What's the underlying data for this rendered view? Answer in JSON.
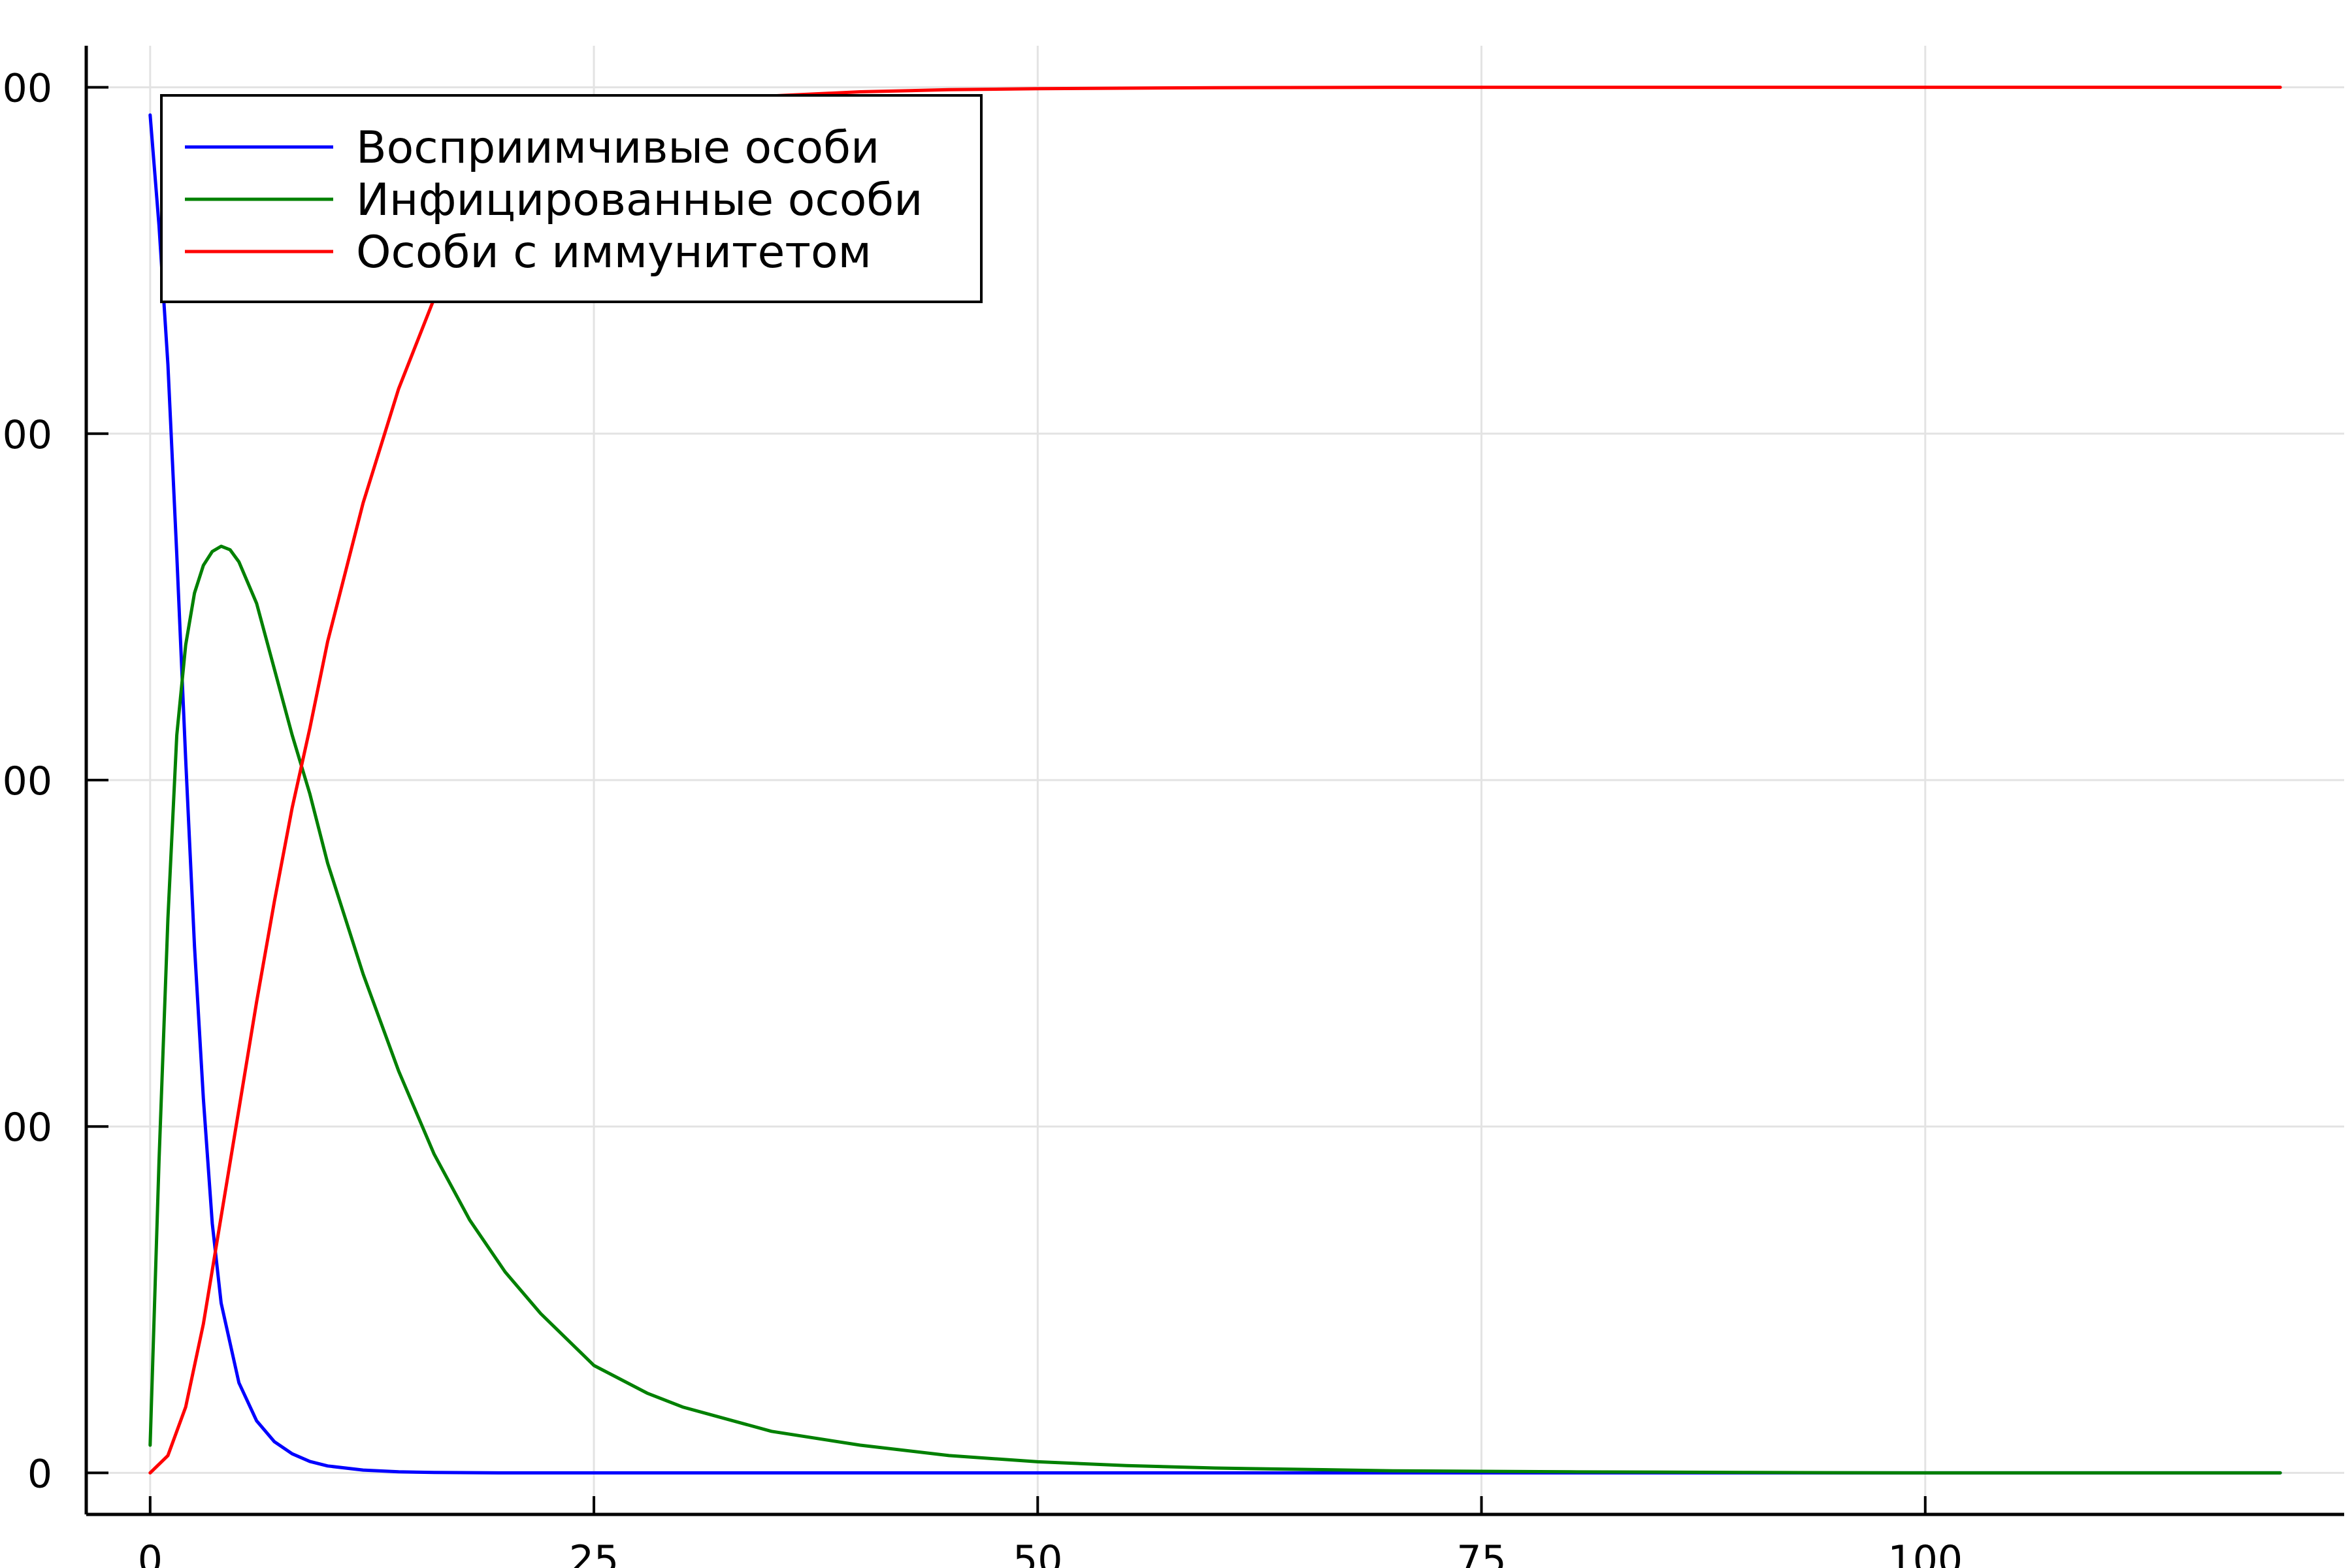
{
  "chart_data": {
    "type": "line",
    "title": "",
    "xlabel": "",
    "ylabel": "",
    "xlim": [
      -3.6,
      123.6
    ],
    "ylim": [
      -120,
      4120
    ],
    "xticks": [
      0,
      25,
      50,
      75,
      100
    ],
    "xtick_labels": [
      "0",
      "25",
      "50",
      "75",
      "100"
    ],
    "yticks": [
      0,
      1000,
      2000,
      3000,
      4000
    ],
    "ytick_labels": [
      "0",
      "00",
      "00",
      "00",
      "00"
    ],
    "grid": true,
    "legend_position": "top-left",
    "series": [
      {
        "name": "Восприимчивые особи",
        "color": "#0000ff",
        "points": [
          [
            0,
            3920
          ],
          [
            0.5,
            3600
          ],
          [
            1,
            3200
          ],
          [
            1.5,
            2650
          ],
          [
            2,
            2060
          ],
          [
            2.5,
            1520
          ],
          [
            3,
            1080
          ],
          [
            3.5,
            720
          ],
          [
            4,
            490
          ],
          [
            5,
            260
          ],
          [
            6,
            150
          ],
          [
            7,
            90
          ],
          [
            8,
            55
          ],
          [
            9,
            33
          ],
          [
            10,
            20
          ],
          [
            12,
            8
          ],
          [
            14,
            3
          ],
          [
            16,
            1
          ],
          [
            20,
            0
          ],
          [
            40,
            0
          ],
          [
            60,
            0
          ],
          [
            80,
            0
          ],
          [
            100,
            0
          ],
          [
            120,
            0
          ]
        ]
      },
      {
        "name": "Инфицированные особи",
        "color": "#008000",
        "points": [
          [
            0,
            80
          ],
          [
            0.5,
            900
          ],
          [
            1,
            1600
          ],
          [
            1.5,
            2130
          ],
          [
            2,
            2390
          ],
          [
            2.5,
            2540
          ],
          [
            3,
            2620
          ],
          [
            3.5,
            2660
          ],
          [
            4,
            2675
          ],
          [
            4.5,
            2665
          ],
          [
            5,
            2630
          ],
          [
            6,
            2510
          ],
          [
            7,
            2320
          ],
          [
            8,
            2130
          ],
          [
            9,
            1960
          ],
          [
            10,
            1760
          ],
          [
            12,
            1440
          ],
          [
            14,
            1160
          ],
          [
            16,
            920
          ],
          [
            18,
            730
          ],
          [
            20,
            580
          ],
          [
            22,
            460
          ],
          [
            25,
            310
          ],
          [
            28,
            230
          ],
          [
            30,
            190
          ],
          [
            35,
            120
          ],
          [
            40,
            80
          ],
          [
            45,
            50
          ],
          [
            50,
            32
          ],
          [
            55,
            21
          ],
          [
            60,
            14
          ],
          [
            70,
            6
          ],
          [
            80,
            3
          ],
          [
            90,
            1
          ],
          [
            100,
            0
          ],
          [
            110,
            0
          ],
          [
            120,
            0
          ]
        ]
      },
      {
        "name": "Особи с иммунитетом",
        "color": "#ff0000",
        "points": [
          [
            0,
            0
          ],
          [
            1,
            50
          ],
          [
            2,
            190
          ],
          [
            3,
            430
          ],
          [
            4,
            740
          ],
          [
            5,
            1050
          ],
          [
            6,
            1360
          ],
          [
            7,
            1650
          ],
          [
            8,
            1920
          ],
          [
            9,
            2150
          ],
          [
            10,
            2400
          ],
          [
            12,
            2800
          ],
          [
            14,
            3130
          ],
          [
            16,
            3390
          ],
          [
            18,
            3590
          ],
          [
            20,
            3720
          ],
          [
            22,
            3810
          ],
          [
            25,
            3890
          ],
          [
            28,
            3935
          ],
          [
            30,
            3950
          ],
          [
            35,
            3975
          ],
          [
            40,
            3987
          ],
          [
            45,
            3993
          ],
          [
            50,
            3996
          ],
          [
            60,
            3999
          ],
          [
            70,
            4000
          ],
          [
            80,
            4000
          ],
          [
            100,
            4000
          ],
          [
            120,
            4000
          ]
        ]
      }
    ]
  }
}
